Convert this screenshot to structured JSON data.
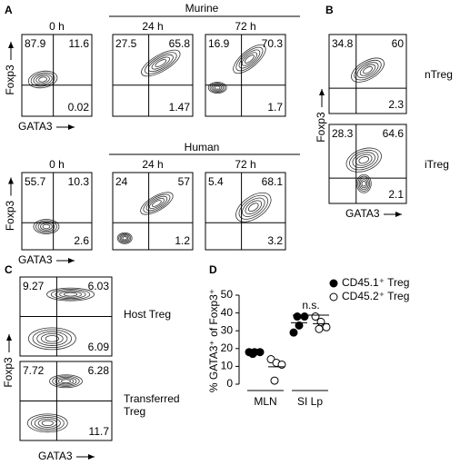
{
  "panels": [
    {
      "label": "A",
      "groups": [
        {
          "title": "Murine",
          "y_label": "Foxp3",
          "x_label": "GATA3",
          "plots": [
            {
              "time": "0 h",
              "quadrants": [
                87.9,
                11.6,
                0.02
              ]
            },
            {
              "time": "24 h",
              "quadrants": [
                27.5,
                65.8,
                1.47
              ]
            },
            {
              "time": "72 h",
              "quadrants": [
                16.9,
                70.3,
                1.7
              ]
            }
          ]
        },
        {
          "title": "Human",
          "y_label": "Foxp3",
          "x_label": "GATA3",
          "plots": [
            {
              "time": "0 h",
              "quadrants": [
                55.7,
                10.3,
                2.6
              ]
            },
            {
              "time": "24 h",
              "quadrants": [
                24,
                57,
                1.2
              ]
            },
            {
              "time": "72 h",
              "quadrants": [
                5.4,
                68.1,
                3.2
              ]
            }
          ]
        }
      ]
    },
    {
      "label": "B",
      "y_label": "Foxp3",
      "x_label": "GATA3",
      "plots": [
        {
          "name": "nTreg",
          "quadrants": [
            34.8,
            60,
            2.3
          ]
        },
        {
          "name": "iTreg",
          "quadrants": [
            28.3,
            64.6,
            2.1
          ]
        }
      ]
    },
    {
      "label": "C",
      "y_label": "Foxp3",
      "x_label": "GATA3",
      "plots": [
        {
          "name": "Host Treg",
          "quadrants": [
            9.27,
            6.03,
            6.09
          ]
        },
        {
          "name": "Transferred Treg",
          "quadrants": [
            7.72,
            6.28,
            11.7
          ]
        }
      ]
    }
  ],
  "chart_data": {
    "type": "dot",
    "label": "D",
    "y_label": "% GATA3⁺ of Foxp3⁺",
    "categories": [
      "MLN",
      "SI Lp"
    ],
    "series": [
      {
        "name": "CD45.1⁺ Treg",
        "color": "#000000",
        "filled": true,
        "values": [
          [
            18,
            18,
            18,
            17
          ],
          [
            29,
            33,
            38,
            38
          ]
        ]
      },
      {
        "name": "CD45.2⁺ Treg",
        "color": "#000000",
        "filled": false,
        "values": [
          [
            14,
            12,
            11,
            2
          ],
          [
            38,
            35,
            32,
            31
          ]
        ]
      }
    ],
    "ylim": [
      0,
      50
    ],
    "yticks": [
      0,
      10,
      20,
      30,
      40,
      50
    ],
    "annotation": "n.s."
  }
}
